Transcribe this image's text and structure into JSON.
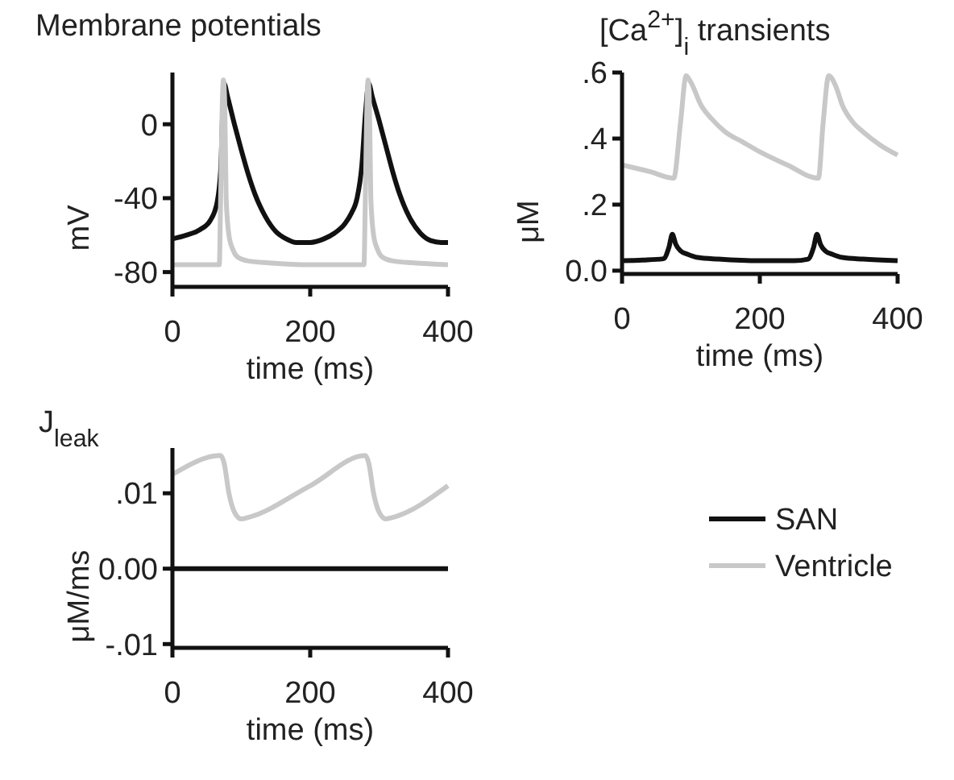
{
  "chart_data": [
    {
      "type": "line",
      "title": "Membrane potentials",
      "xlabel": "time (ms)",
      "ylabel": "mV",
      "xlim": [
        0,
        400
      ],
      "xticks": [
        0,
        200,
        400
      ],
      "ylim": [
        -88,
        28
      ],
      "yticks": [
        -80,
        -40,
        0
      ],
      "series": [
        {
          "color": "#111111",
          "x": [
            0,
            20,
            40,
            55,
            65,
            70,
            75,
            80,
            90,
            100,
            110,
            120,
            135,
            150,
            165,
            180,
            200,
            220,
            235,
            250,
            260,
            268,
            275,
            280,
            285,
            290,
            300,
            310,
            320,
            330,
            345,
            360,
            375,
            390,
            400
          ],
          "values": [
            -62,
            -60,
            -57,
            -52,
            -42,
            -25,
            22,
            15,
            0,
            -14,
            -27,
            -38,
            -50,
            -58,
            -62,
            -64,
            -64,
            -62,
            -59,
            -54,
            -48,
            -40,
            -22,
            5,
            22,
            15,
            2,
            -12,
            -26,
            -38,
            -51,
            -59,
            -63,
            -64,
            -64
          ]
        },
        {
          "color": "#c8c8c8",
          "x": [
            0,
            40,
            68,
            70,
            72,
            74,
            76,
            78,
            82,
            88,
            95,
            110,
            140,
            200,
            278,
            280,
            282,
            284,
            286,
            288,
            292,
            298,
            305,
            320,
            350,
            400
          ],
          "values": [
            -76,
            -76,
            -76,
            -40,
            5,
            24,
            10,
            -40,
            -60,
            -68,
            -72,
            -74,
            -75,
            -76,
            -76,
            -40,
            5,
            24,
            10,
            -40,
            -60,
            -68,
            -72,
            -74,
            -75,
            -76
          ]
        }
      ]
    },
    {
      "type": "line",
      "title": "[Ca$^{2+}$]$_{i}$ transients",
      "xlabel": "time (ms)",
      "ylabel": "μM",
      "xlim": [
        0,
        400
      ],
      "xticks": [
        0,
        200,
        400
      ],
      "ylim": [
        -0.01,
        0.6
      ],
      "yticks": [
        {
          "value": 0,
          "label": "0.0"
        },
        {
          "value": 0.2,
          "label": ".2"
        },
        {
          "value": 0.4,
          "label": ".4"
        },
        {
          "value": 0.6,
          "label": ".6"
        }
      ],
      "series": [
        {
          "color": "#111111",
          "x": [
            0,
            30,
            60,
            68,
            73,
            78,
            85,
            95,
            110,
            140,
            200,
            250,
            270,
            278,
            283,
            288,
            295,
            305,
            320,
            350,
            400
          ],
          "values": [
            0.03,
            0.032,
            0.036,
            0.07,
            0.11,
            0.08,
            0.06,
            0.05,
            0.04,
            0.035,
            0.03,
            0.03,
            0.035,
            0.07,
            0.11,
            0.08,
            0.06,
            0.05,
            0.04,
            0.035,
            0.03
          ]
        },
        {
          "color": "#c8c8c8",
          "x": [
            0,
            40,
            75,
            85,
            93,
            100,
            115,
            130,
            150,
            175,
            200,
            240,
            285,
            292,
            300,
            310,
            320,
            335,
            350,
            375,
            400
          ],
          "values": [
            0.32,
            0.3,
            0.28,
            0.45,
            0.59,
            0.57,
            0.5,
            0.46,
            0.42,
            0.39,
            0.36,
            0.32,
            0.28,
            0.45,
            0.59,
            0.56,
            0.5,
            0.45,
            0.42,
            0.38,
            0.35
          ]
        }
      ]
    },
    {
      "type": "line",
      "title": "J$_{leak}$",
      "xlabel": "time (ms)",
      "ylabel": "μM/ms",
      "xlim": [
        0,
        400
      ],
      "xticks": [
        0,
        200,
        400
      ],
      "ylim": [
        -0.0105,
        0.016
      ],
      "yticks": [
        {
          "value": -0.01,
          "label": "-.01"
        },
        {
          "value": 0,
          "label": "0.00"
        },
        {
          "value": 0.01,
          "label": ".01"
        }
      ],
      "legend": "right",
      "series": [
        {
          "name": "SAN",
          "color": "#111111",
          "x": [
            0,
            400
          ],
          "values": [
            0,
            0
          ]
        },
        {
          "name": "Ventricle",
          "color": "#c8c8c8",
          "x": [
            0,
            70,
            75,
            82,
            90,
            100,
            110,
            200,
            280,
            285,
            292,
            300,
            310,
            320,
            400
          ],
          "values": [
            0.0125,
            0.015,
            0.014,
            0.01,
            0.0075,
            0.0066,
            0.0068,
            0.011,
            0.015,
            0.014,
            0.01,
            0.0075,
            0.0066,
            0.0068,
            0.011
          ]
        }
      ]
    }
  ]
}
